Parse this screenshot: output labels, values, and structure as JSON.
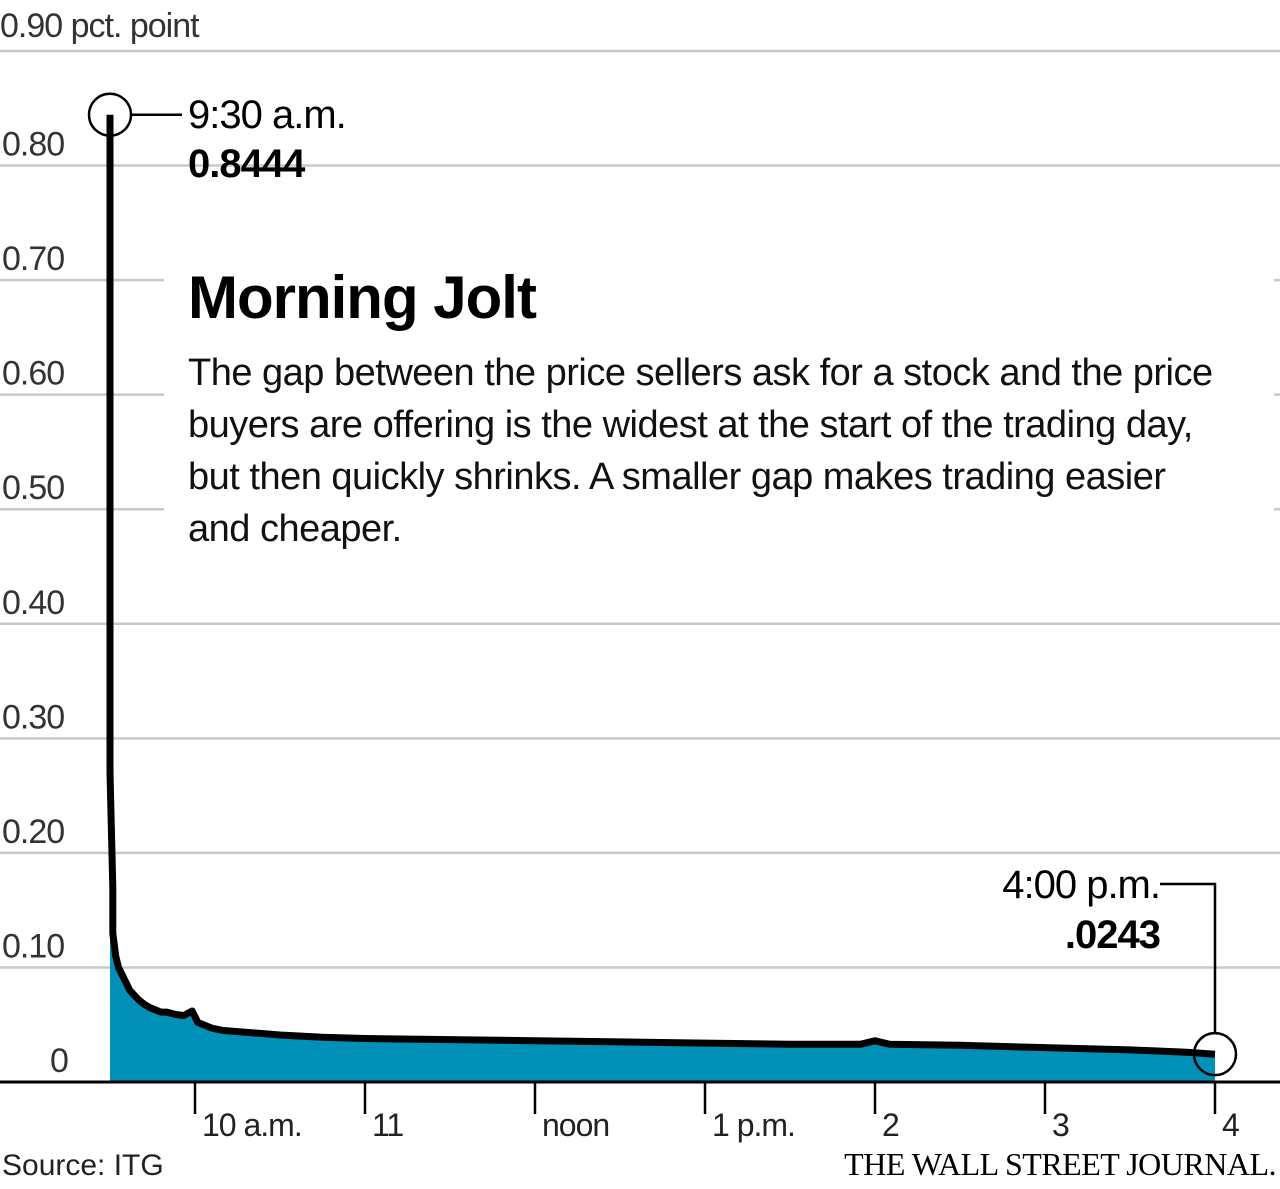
{
  "chart_data": {
    "type": "area",
    "title": "Morning Jolt",
    "subtitle": "The gap between the price sellers ask for a stock and the price buyers are offering is the widest at the start of the trading day, but then quickly shrinks. A smaller gap makes trading easier and cheaper.",
    "y_unit_label": "pct. point",
    "ylim": [
      0,
      0.9
    ],
    "y_ticks": [
      "0.90",
      "0.80",
      "0.70",
      "0.60",
      "0.50",
      "0.40",
      "0.30",
      "0.20",
      "0.10",
      "0"
    ],
    "xlim": [
      "9:30",
      "16:00"
    ],
    "x_ticks": [
      {
        "time": "10:00",
        "label": "10 a.m."
      },
      {
        "time": "11:00",
        "label": "11"
      },
      {
        "time": "12:00",
        "label": "noon"
      },
      {
        "time": "13:00",
        "label": "1 p.m."
      },
      {
        "time": "14:00",
        "label": "2"
      },
      {
        "time": "15:00",
        "label": "3"
      },
      {
        "time": "16:00",
        "label": "4"
      }
    ],
    "grid": true,
    "series": [
      {
        "x": [
          "9:30",
          "9:30",
          "9:30",
          "9:31",
          "9:31",
          "9:32",
          "9:33",
          "9:35",
          "9:37",
          "9:40",
          "9:42",
          "9:44",
          "9:46",
          "9:47",
          "9:48",
          "9:50",
          "9:53",
          "9:56",
          "9:59",
          "10:00",
          "10:01",
          "10:03",
          "10:06",
          "10:10",
          "10:15",
          "10:20",
          "10:30",
          "10:45",
          "11:00",
          "11:30",
          "12:00",
          "12:30",
          "13:00",
          "13:30",
          "13:55",
          "14:00",
          "14:05",
          "14:30",
          "15:00",
          "15:30",
          "15:50",
          "16:00"
        ],
        "y": [
          0.8444,
          0.55,
          0.27,
          0.17,
          0.13,
          0.11,
          0.1,
          0.09,
          0.08,
          0.072,
          0.068,
          0.065,
          0.063,
          0.062,
          0.061,
          0.061,
          0.059,
          0.058,
          0.062,
          0.057,
          0.052,
          0.05,
          0.047,
          0.045,
          0.044,
          0.043,
          0.041,
          0.039,
          0.038,
          0.037,
          0.036,
          0.035,
          0.034,
          0.033,
          0.033,
          0.036,
          0.033,
          0.032,
          0.03,
          0.028,
          0.026,
          0.0243
        ]
      }
    ],
    "annotations": [
      {
        "time": "9:30 a.m.",
        "value": "0.8444",
        "x": "9:30",
        "y": 0.8444
      },
      {
        "time": "4:00 p.m.",
        "value": ".0243",
        "x": "16:00",
        "y": 0.0243
      }
    ],
    "colors": {
      "fill": "#0090b8",
      "line": "#000000",
      "grid": "#c8c8c8",
      "axis": "#000000"
    }
  },
  "footer": {
    "source": "Source: ITG",
    "brand": "THE WALL STREET JOURNAL."
  }
}
